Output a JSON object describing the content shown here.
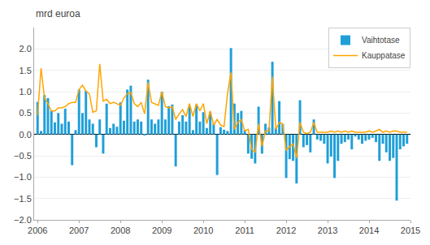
{
  "chart_data": {
    "type": "bar",
    "ylabel": "mrd euroa",
    "categories": [
      "2006",
      null,
      null,
      null,
      null,
      null,
      null,
      null,
      null,
      null,
      null,
      null,
      "2007",
      null,
      null,
      null,
      null,
      null,
      null,
      null,
      null,
      null,
      null,
      null,
      "2008",
      null,
      null,
      null,
      null,
      null,
      null,
      null,
      null,
      null,
      null,
      null,
      "2009",
      null,
      null,
      null,
      null,
      null,
      null,
      null,
      null,
      null,
      null,
      null,
      "2010",
      null,
      null,
      null,
      null,
      null,
      null,
      null,
      null,
      null,
      null,
      null,
      "2011",
      null,
      null,
      null,
      null,
      null,
      null,
      null,
      null,
      null,
      null,
      null,
      "2012",
      null,
      null,
      null,
      null,
      null,
      null,
      null,
      null,
      null,
      null,
      null,
      "2013",
      null,
      null,
      null,
      null,
      null,
      null,
      null,
      null,
      null,
      null,
      null,
      "2014",
      null,
      null,
      null,
      null,
      null,
      null,
      null,
      null,
      null,
      null,
      null,
      "2015"
    ],
    "series": [
      {
        "name": "Vaihtotase",
        "type": "bar",
        "color": "#1F9FD8",
        "values": [
          0.76,
          0.08,
          0.92,
          0.85,
          0.55,
          0.28,
          0.5,
          0.25,
          0.6,
          0.3,
          -0.72,
          0.1,
          1.05,
          0.5,
          1.02,
          0.35,
          0.25,
          -0.3,
          0.35,
          -0.45,
          0.72,
          0.15,
          0.25,
          0.18,
          0.75,
          0.32,
          1.05,
          1.14,
          0.3,
          0.35,
          0.3,
          -0.02,
          1.28,
          0.35,
          0.25,
          0.35,
          1.0,
          0.35,
          0.66,
          0.7,
          -0.75,
          0.3,
          0.45,
          0.3,
          0.65,
          0.1,
          0.7,
          0.3,
          0.52,
          0.15,
          0.53,
          0.25,
          -0.95,
          0.17,
          0.11,
          0.08,
          2.02,
          0.72,
          0.5,
          0.55,
          0.1,
          -0.45,
          -0.57,
          -0.68,
          0.65,
          -0.45,
          0.25,
          0.16,
          1.7,
          0.15,
          0.78,
          0.24,
          -1.02,
          -0.58,
          -0.62,
          -1.15,
          0.8,
          -0.3,
          -0.25,
          -0.42,
          0.35,
          -0.12,
          -0.15,
          -0.22,
          -0.68,
          -0.52,
          -1.02,
          -0.62,
          -0.22,
          -0.18,
          -0.12,
          -0.35,
          -0.05,
          -0.12,
          -0.22,
          -0.15,
          -0.12,
          -0.08,
          -0.18,
          -0.62,
          -0.22,
          -0.42,
          -0.62,
          -0.55,
          -1.55,
          -0.35,
          -0.28,
          -0.22,
          null
        ]
      },
      {
        "name": "Kauppatase",
        "type": "line",
        "color": "#FFA500",
        "values": [
          0.45,
          1.55,
          0.85,
          0.72,
          0.55,
          0.55,
          0.62,
          0.62,
          0.65,
          0.72,
          0.75,
          0.75,
          1.05,
          1.15,
          1.02,
          0.95,
          0.52,
          0.55,
          1.65,
          0.78,
          0.82,
          0.72,
          0.75,
          0.72,
          0.68,
          0.85,
          0.95,
          0.98,
          0.72,
          0.65,
          0.75,
          0.48,
          1.22,
          0.75,
          0.72,
          0.68,
          1.0,
          0.65,
          0.62,
          0.65,
          0.35,
          0.48,
          0.58,
          0.42,
          0.72,
          0.42,
          0.72,
          0.55,
          0.72,
          0.25,
          0.55,
          0.22,
          0.35,
          0.22,
          0.18,
          0.95,
          1.45,
          0.12,
          0.28,
          0.35,
          0.08,
          0.12,
          -0.35,
          -0.42,
          0.25,
          -0.28,
          0.08,
          0.08,
          1.35,
          0.12,
          0.28,
          0.25,
          -0.38,
          -0.28,
          -0.22,
          -0.55,
          0.28,
          0.05,
          0.02,
          0.05,
          0.28,
          0.05,
          0.05,
          0.05,
          0.05,
          0.08,
          0.05,
          0.08,
          0.05,
          0.08,
          0.05,
          0.08,
          0.05,
          0.05,
          0.05,
          0.05,
          0.08,
          0.05,
          0.08,
          0.12,
          0.05,
          0.08,
          0.05,
          0.08,
          0.08,
          0.05,
          0.05,
          0.05,
          null
        ]
      }
    ],
    "ylim": [
      -2.0,
      2.5
    ],
    "yticks": [
      {
        "value": -2.0,
        "label": "−2.0"
      },
      {
        "value": -1.5,
        "label": "−1.5"
      },
      {
        "value": -1.0,
        "label": "−1.0"
      },
      {
        "value": -0.5,
        "label": "−0.5"
      },
      {
        "value": 0.0,
        "label": "0.0"
      },
      {
        "value": 0.5,
        "label": "0.5"
      },
      {
        "value": 1.0,
        "label": "1.0"
      },
      {
        "value": 1.5,
        "label": "1.5"
      },
      {
        "value": 2.0,
        "label": "2.0"
      }
    ],
    "grid": true,
    "legend": "upper right"
  }
}
